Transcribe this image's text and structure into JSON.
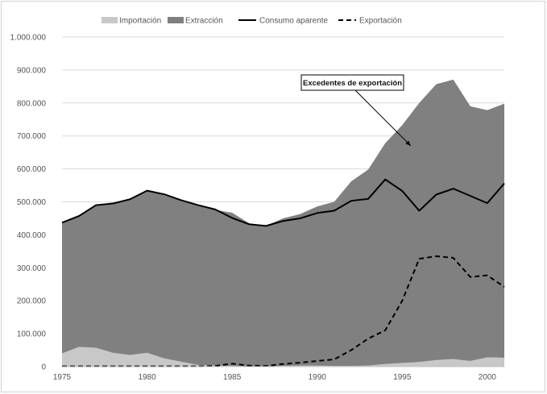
{
  "chart_data": {
    "type": "area",
    "x": [
      1975,
      1976,
      1977,
      1978,
      1979,
      1980,
      1981,
      1982,
      1983,
      1984,
      1985,
      1986,
      1987,
      1988,
      1989,
      1990,
      1991,
      1992,
      1993,
      1994,
      1995,
      1996,
      1997,
      1998,
      1999,
      2000,
      2001
    ],
    "series": [
      {
        "name": "Importación",
        "style": "area",
        "color": "#c8c8c8",
        "values": [
          40000,
          60000,
          57000,
          42000,
          35000,
          42000,
          25000,
          15000,
          5000,
          3000,
          2000,
          1000,
          1000,
          2000,
          3000,
          3000,
          2000,
          2000,
          3000,
          8000,
          11000,
          14000,
          20000,
          23000,
          17000,
          28000,
          27000
        ]
      },
      {
        "name": "Extracción",
        "style": "area",
        "color": "#808080",
        "values": [
          397000,
          400000,
          433000,
          456000,
          473000,
          492000,
          495000,
          490000,
          483000,
          473000,
          465000,
          434000,
          427000,
          448000,
          460000,
          483000,
          498000,
          560000,
          595000,
          670000,
          722000,
          786000,
          837000,
          848000,
          773000,
          750000,
          771000
        ]
      },
      {
        "name": "Consumo aparente",
        "style": "solid",
        "color": "#000000",
        "values": [
          437000,
          457000,
          490000,
          495000,
          508000,
          534000,
          523000,
          505000,
          490000,
          477000,
          451000,
          432000,
          427000,
          442000,
          450000,
          466000,
          473000,
          503000,
          509000,
          568000,
          533000,
          473000,
          522000,
          540000,
          518000,
          496000,
          556000
        ]
      },
      {
        "name": "Exportación",
        "style": "dashed",
        "color": "#000000",
        "values": [
          1000,
          1000,
          1000,
          1000,
          1000,
          1000,
          1000,
          1000,
          1000,
          2000,
          9000,
          3000,
          2000,
          8000,
          12000,
          17000,
          22000,
          50000,
          85000,
          110000,
          200000,
          327000,
          335000,
          330000,
          272000,
          277000,
          242000
        ]
      }
    ],
    "xticks": [
      1975,
      1980,
      1985,
      1990,
      1995,
      2000
    ],
    "yticks": [
      0,
      100000,
      200000,
      300000,
      400000,
      500000,
      600000,
      700000,
      800000,
      900000,
      1000000
    ],
    "ytick_labels": [
      "0",
      "100.000",
      "200.000",
      "300.000",
      "400.000",
      "500.000",
      "600.000",
      "700.000",
      "800.000",
      "900.000",
      "1.000.000"
    ],
    "ylim": [
      0,
      1000000
    ],
    "xlim": [
      1975,
      2001
    ],
    "grid": "horizontal",
    "legend_position": "top",
    "annotation": {
      "text": "Excedentes de exportación",
      "x": 1995.5,
      "y": 670000
    }
  }
}
